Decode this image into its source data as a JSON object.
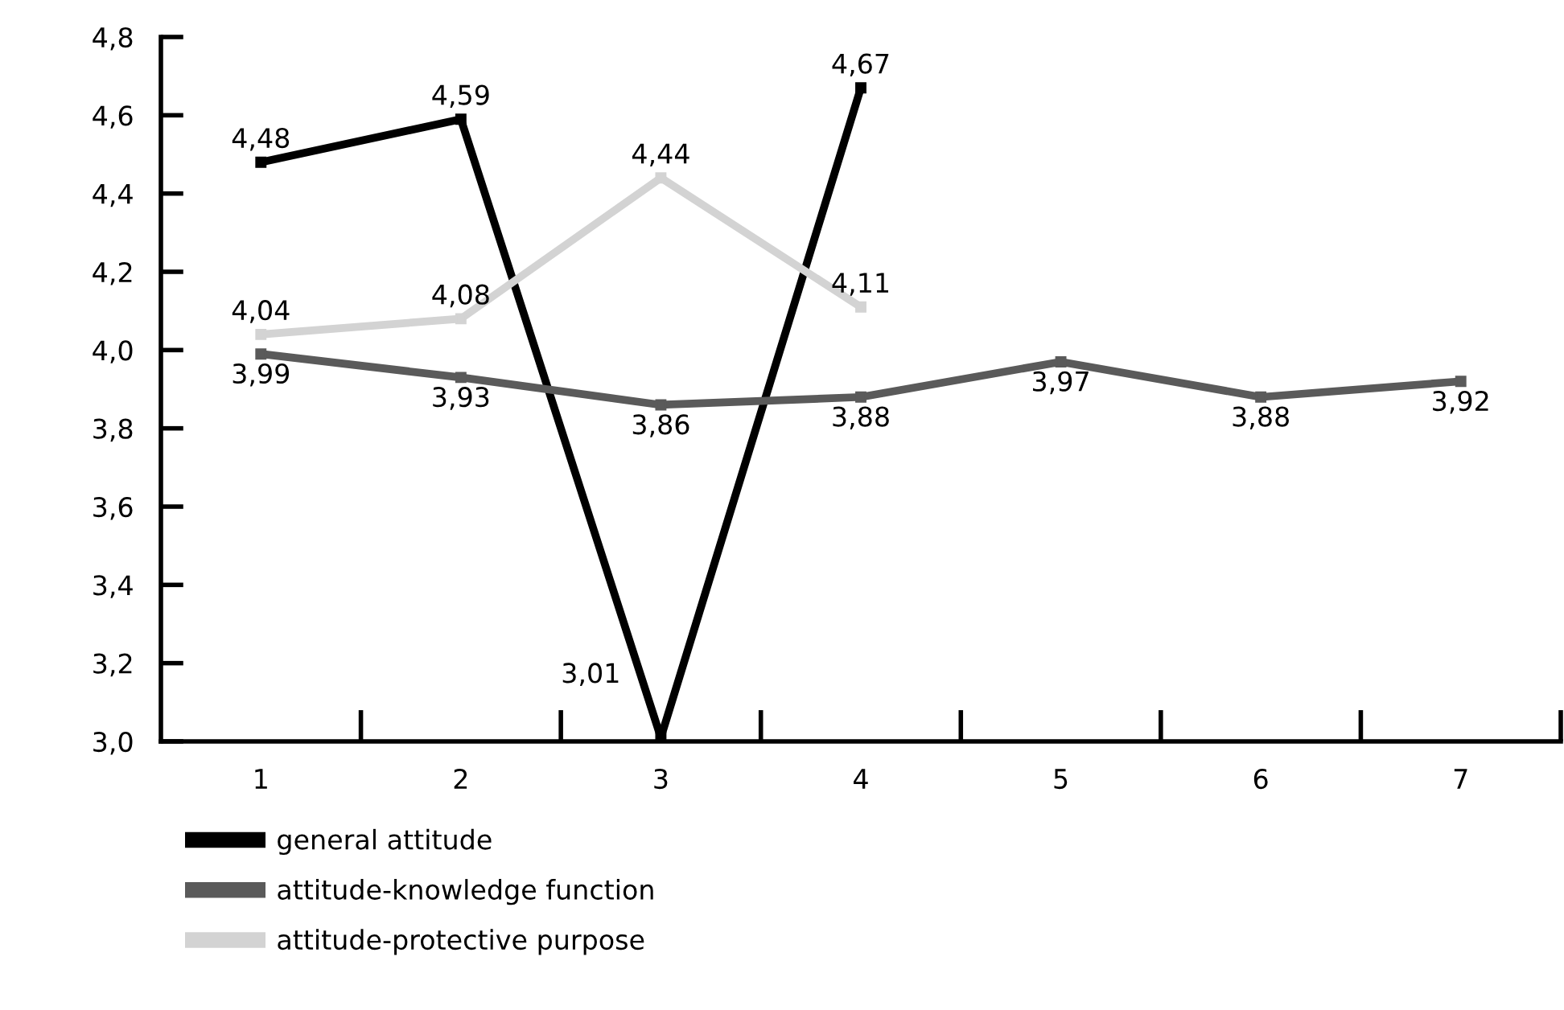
{
  "chart_data": {
    "type": "line",
    "categories": [
      "1",
      "2",
      "3",
      "4",
      "5",
      "6",
      "7"
    ],
    "series": [
      {
        "name": "general attitude",
        "color": "#000000",
        "values": [
          4.48,
          4.59,
          3.01,
          4.67,
          null,
          null,
          null
        ],
        "value_labels": [
          "4,48",
          "4,59",
          "3,01",
          "4,67",
          null,
          null,
          null
        ]
      },
      {
        "name": "attitude-knowledge function",
        "color": "#5a5a5a",
        "values": [
          3.99,
          3.93,
          3.86,
          3.88,
          3.97,
          3.88,
          3.92
        ],
        "value_labels": [
          "3,99",
          "3,93",
          "3,86",
          "3,88",
          "3,97",
          "3,88",
          "3,92"
        ]
      },
      {
        "name": "attitude-protective purpose",
        "color": "#d3d3d3",
        "values": [
          4.04,
          4.08,
          4.44,
          4.11,
          null,
          null,
          null
        ],
        "value_labels": [
          "4,04",
          "4,08",
          "4,44",
          "4,11",
          null,
          null,
          null
        ]
      }
    ],
    "ylim": [
      3.0,
      4.8
    ],
    "yticks": [
      {
        "value": 3.0,
        "label": "3,0"
      },
      {
        "value": 3.2,
        "label": "3,2"
      },
      {
        "value": 3.4,
        "label": "3,4"
      },
      {
        "value": 3.6,
        "label": "3,6"
      },
      {
        "value": 3.8,
        "label": "3,8"
      },
      {
        "value": 4.0,
        "label": "4,0"
      },
      {
        "value": 4.2,
        "label": "4,2"
      },
      {
        "value": 4.4,
        "label": "4,4"
      },
      {
        "value": 4.6,
        "label": "4,6"
      },
      {
        "value": 4.8,
        "label": "4,8"
      }
    ],
    "grid": false,
    "legend": "bottom",
    "marker": "square",
    "line_style": "solid"
  }
}
